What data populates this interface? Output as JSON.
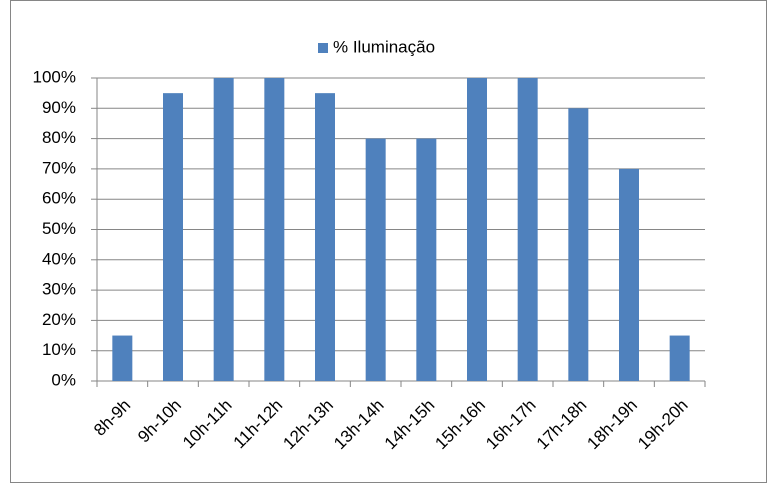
{
  "chart_data": {
    "type": "bar",
    "categories": [
      "8h-9h",
      "9h-10h",
      "10h-11h",
      "11h-12h",
      "12h-13h",
      "13h-14h",
      "14h-15h",
      "15h-16h",
      "16h-17h",
      "17h-18h",
      "18h-19h",
      "19h-20h"
    ],
    "series": [
      {
        "name": "% Iluminação",
        "color": "#4f81bd",
        "values": [
          15,
          95,
          100,
          100,
          95,
          80,
          80,
          100,
          100,
          90,
          70,
          15
        ]
      }
    ],
    "ylim": [
      0,
      100
    ],
    "yticks": [
      {
        "value": 0,
        "label": "0%"
      },
      {
        "value": 10,
        "label": "10%"
      },
      {
        "value": 20,
        "label": "20%"
      },
      {
        "value": 30,
        "label": "30%"
      },
      {
        "value": 40,
        "label": "40%"
      },
      {
        "value": 50,
        "label": "50%"
      },
      {
        "value": 60,
        "label": "60%"
      },
      {
        "value": 70,
        "label": "70%"
      },
      {
        "value": 80,
        "label": "80%"
      },
      {
        "value": 90,
        "label": "90%"
      },
      {
        "value": 100,
        "label": "100%"
      }
    ],
    "grid": true,
    "legend": "top"
  }
}
